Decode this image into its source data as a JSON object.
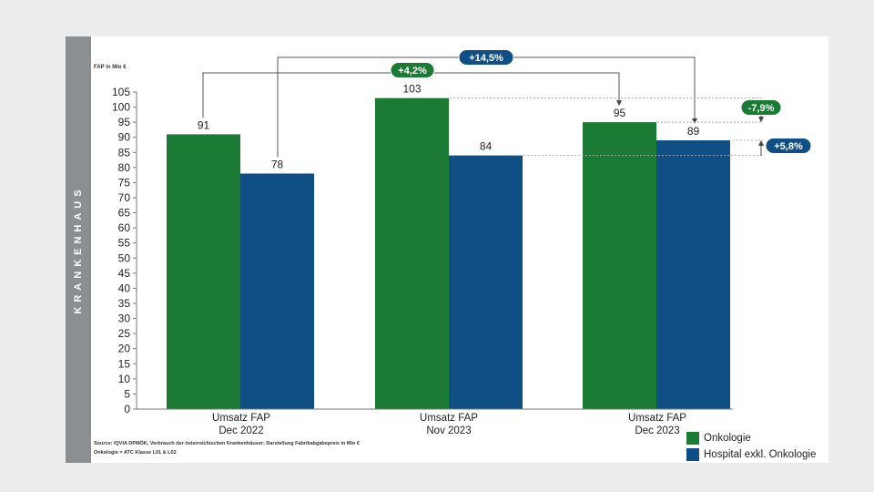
{
  "side_label": "KRANKENHAUS",
  "source": {
    "line1": "Source: IQVIA DPMÖK, Verbrauch der österreichischen Krankenhäuser; Darstellung Fabrikabgabepreis in Mio €",
    "line2": "Onkologie = ATC Klasse L01 & L02"
  },
  "chart_data": {
    "type": "bar",
    "ylabel": "FAP in Mio €",
    "ylim": [
      0,
      105
    ],
    "yticks": [
      0,
      5,
      10,
      15,
      20,
      25,
      30,
      35,
      40,
      45,
      50,
      55,
      60,
      65,
      70,
      75,
      80,
      85,
      90,
      95,
      100,
      105
    ],
    "categories": [
      [
        "Umsatz FAP",
        "Dec 2022"
      ],
      [
        "Umsatz FAP",
        "Nov 2023"
      ],
      [
        "Umsatz FAP",
        "Dec 2023"
      ]
    ],
    "series": [
      {
        "name": "Onkologie",
        "color": "#1b7b34",
        "values": [
          91,
          103,
          95
        ]
      },
      {
        "name": "Hospital exkl. Onkologie",
        "color": "#0f4f86",
        "values": [
          78,
          84,
          89
        ]
      }
    ],
    "legend_position": "bottom-right",
    "annotations": [
      {
        "label": "+4,2%",
        "color": "#1b7b34",
        "type": "bracket",
        "from": {
          "category": 0,
          "series": 0
        },
        "to": {
          "category": 2,
          "series": 0
        }
      },
      {
        "label": "+14,5%",
        "color": "#0f4f86",
        "type": "bracket",
        "from": {
          "category": 0,
          "series": 1
        },
        "to": {
          "category": 2,
          "series": 1
        }
      },
      {
        "label": "-7,9%",
        "color": "#1b7b34",
        "type": "gap",
        "from_value": 103,
        "to_value": 95
      },
      {
        "label": "+5,8%",
        "color": "#0f4f86",
        "type": "gap",
        "from_value": 84,
        "to_value": 89
      }
    ]
  }
}
